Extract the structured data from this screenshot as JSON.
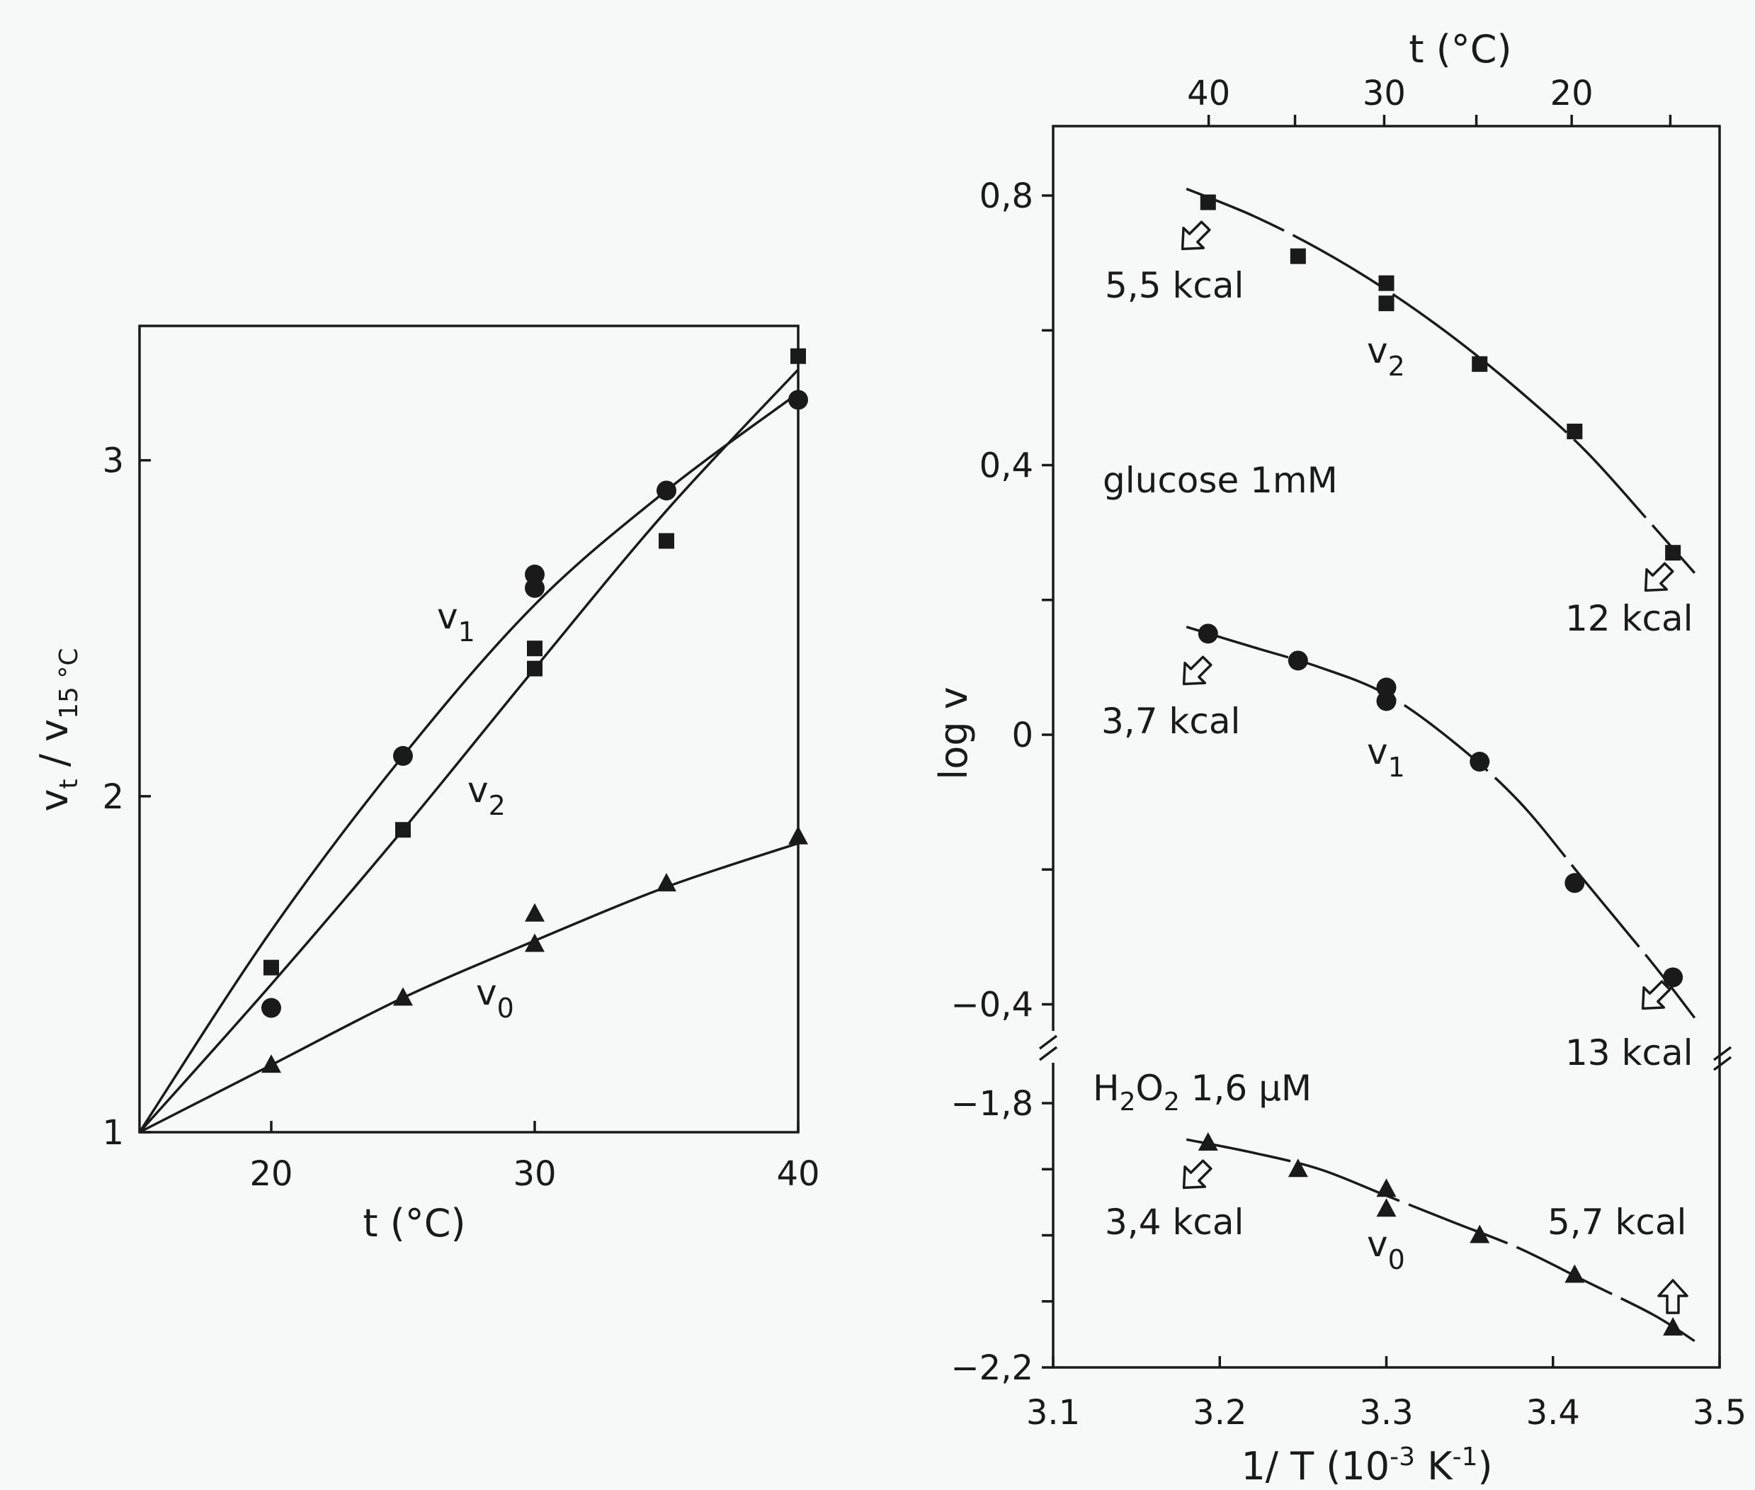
{
  "chart_data": [
    {
      "type": "scatter",
      "panel": "left",
      "xlabel": "t (°C)",
      "ylabel": "vt / v15 °C",
      "xlim": [
        15,
        40
      ],
      "ylim": [
        1,
        3.4
      ],
      "x_ticks": [
        20,
        30,
        40
      ],
      "y_ticks": [
        1,
        2,
        3
      ],
      "x_tick_labels": [
        "20",
        "30",
        "40"
      ],
      "y_tick_labels": [
        "1",
        "2",
        "3"
      ],
      "grid": false,
      "series": [
        {
          "name": "v1",
          "marker": "circle",
          "points": [
            [
              20,
              1.37
            ],
            [
              25,
              2.12
            ],
            [
              30,
              2.66
            ],
            [
              30,
              2.62
            ],
            [
              35,
              2.91
            ],
            [
              40,
              3.18
            ]
          ],
          "curve": [
            [
              15,
              1.0
            ],
            [
              20,
              1.6
            ],
            [
              25,
              2.12
            ],
            [
              30,
              2.57
            ],
            [
              35,
              2.91
            ],
            [
              40,
              3.2
            ]
          ]
        },
        {
          "name": "v2",
          "marker": "square",
          "points": [
            [
              20,
              1.49
            ],
            [
              25,
              1.9
            ],
            [
              30,
              2.44
            ],
            [
              30,
              2.38
            ],
            [
              35,
              2.76
            ],
            [
              40,
              3.31
            ]
          ],
          "curve": [
            [
              15,
              1.0
            ],
            [
              20,
              1.44
            ],
            [
              25,
              1.9
            ],
            [
              30,
              2.38
            ],
            [
              35,
              2.85
            ],
            [
              40,
              3.27
            ]
          ]
        },
        {
          "name": "v0",
          "marker": "triangle",
          "points": [
            [
              20,
              1.2
            ],
            [
              25,
              1.4
            ],
            [
              30,
              1.65
            ],
            [
              30,
              1.56
            ],
            [
              35,
              1.74
            ],
            [
              40,
              1.88
            ]
          ],
          "curve": [
            [
              15,
              1.0
            ],
            [
              20,
              1.2
            ],
            [
              25,
              1.4
            ],
            [
              30,
              1.57
            ],
            [
              35,
              1.73
            ],
            [
              40,
              1.86
            ]
          ]
        }
      ]
    },
    {
      "type": "scatter",
      "panel": "right",
      "xlabel": "1/ T (10⁻³ K⁻¹)",
      "ylabel": "log v",
      "top_xlabel": "t (°C)",
      "xlim": [
        3.1,
        3.5
      ],
      "ylim_upper": [
        -0.45,
        0.9
      ],
      "ylim_lower": [
        -2.2,
        -1.75
      ],
      "axis_break": true,
      "x_ticks": [
        3.1,
        3.2,
        3.3,
        3.4,
        3.5
      ],
      "x_tick_labels": [
        "3.1",
        "3.2",
        "3.3",
        "3.4",
        "3.5"
      ],
      "top_ticks_celsius": [
        40,
        35,
        30,
        25,
        20,
        15
      ],
      "top_tick_labels": [
        "40",
        "30",
        "20"
      ],
      "y_ticks_upper": [
        0.8,
        0.6,
        0.4,
        0.2,
        0,
        -0.2,
        -0.4
      ],
      "y_tick_labels_upper": [
        "0.8",
        "0.4",
        "0",
        "-0.4"
      ],
      "y_ticks_lower": [
        -1.8,
        -1.9,
        -2.0,
        -2.1,
        -2.2
      ],
      "y_tick_labels_lower": [
        "-1.8",
        "-2.2"
      ],
      "grid": false,
      "series": [
        {
          "name": "v2",
          "marker": "square",
          "points": [
            [
              3.193,
              0.79
            ],
            [
              3.247,
              0.71
            ],
            [
              3.3,
              0.67
            ],
            [
              3.3,
              0.64
            ],
            [
              3.356,
              0.55
            ],
            [
              3.413,
              0.45
            ],
            [
              3.472,
              0.27
            ]
          ],
          "curve": [
            [
              3.18,
              0.81
            ],
            [
              3.22,
              0.77
            ],
            [
              3.26,
              0.72
            ],
            [
              3.3,
              0.66
            ],
            [
              3.34,
              0.59
            ],
            [
              3.38,
              0.51
            ],
            [
              3.42,
              0.42
            ],
            [
              3.46,
              0.31
            ],
            [
              3.485,
              0.24
            ]
          ]
        },
        {
          "name": "v1",
          "marker": "circle",
          "points": [
            [
              3.193,
              0.15
            ],
            [
              3.247,
              0.11
            ],
            [
              3.3,
              0.07
            ],
            [
              3.3,
              0.05
            ],
            [
              3.356,
              -0.04
            ],
            [
              3.413,
              -0.22
            ],
            [
              3.472,
              -0.36
            ]
          ],
          "curve": [
            [
              3.18,
              0.16
            ],
            [
              3.22,
              0.13
            ],
            [
              3.26,
              0.1
            ],
            [
              3.3,
              0.06
            ],
            [
              3.34,
              -0.01
            ],
            [
              3.38,
              -0.1
            ],
            [
              3.42,
              -0.22
            ],
            [
              3.46,
              -0.34
            ],
            [
              3.485,
              -0.42
            ]
          ]
        },
        {
          "name": "v0",
          "marker": "triangle",
          "points": [
            [
              3.193,
              -1.86
            ],
            [
              3.247,
              -1.9
            ],
            [
              3.3,
              -1.93
            ],
            [
              3.3,
              -1.96
            ],
            [
              3.356,
              -2.0
            ],
            [
              3.413,
              -2.06
            ],
            [
              3.472,
              -2.14
            ]
          ],
          "curve": [
            [
              3.18,
              -1.855
            ],
            [
              3.22,
              -1.875
            ],
            [
              3.26,
              -1.9
            ],
            [
              3.3,
              -1.94
            ],
            [
              3.34,
              -1.98
            ],
            [
              3.38,
              -2.02
            ],
            [
              3.42,
              -2.07
            ],
            [
              3.46,
              -2.12
            ],
            [
              3.485,
              -2.16
            ]
          ]
        }
      ],
      "annotations": [
        "5.5 kcal",
        "12 kcal",
        "3.7 kcal",
        "13 kcal",
        "3.4 kcal",
        "5.7 kcal"
      ],
      "conditions": [
        "glucose 1mM",
        "H2O2 1.6 µM"
      ]
    }
  ],
  "labels": {
    "left_xlabel": "t (°C)",
    "left_ylabel_main": "v",
    "left_ylabel_sub1": "t",
    "left_ylabel_slash": " / v",
    "left_ylabel_sub2": "15 °C",
    "right_xlabel_main": "1/ T  (10",
    "right_xlabel_sup1": "-3",
    "right_xlabel_k": " K",
    "right_xlabel_sup2": "-1",
    "right_xlabel_end": ")",
    "right_ylabel": "log v",
    "right_top_xlabel": "t (°C)",
    "series_v1": "v",
    "series_v1_sub": "1",
    "series_v2": "v",
    "series_v2_sub": "2",
    "series_v0": "v",
    "series_v0_sub": "0",
    "ann_55": "5,5 kcal",
    "ann_12": "12 kcal",
    "ann_37": "3,7 kcal",
    "ann_13": "13 kcal",
    "ann_34": "3,4 kcal",
    "ann_57": "5,7 kcal",
    "glucose": "glucose 1mM",
    "h2o2_h": "H",
    "h2o2_2a": "2",
    "h2o2_o": "O",
    "h2o2_2b": "2",
    "h2o2_rest": " 1,6 µM",
    "left_x_ticks": [
      "20",
      "30",
      "40"
    ],
    "left_y_ticks": [
      "1",
      "2",
      "3"
    ],
    "right_x_ticks": [
      "3.1",
      "3.2",
      "3.3",
      "3.4",
      "3.5"
    ],
    "right_top_ticks": [
      "40",
      "30",
      "20"
    ],
    "right_y_ticks_upper": [
      "0,8",
      "0,4",
      "0",
      "−0,4"
    ],
    "right_y_ticks_lower": [
      "−1,8",
      "−2,2"
    ]
  }
}
